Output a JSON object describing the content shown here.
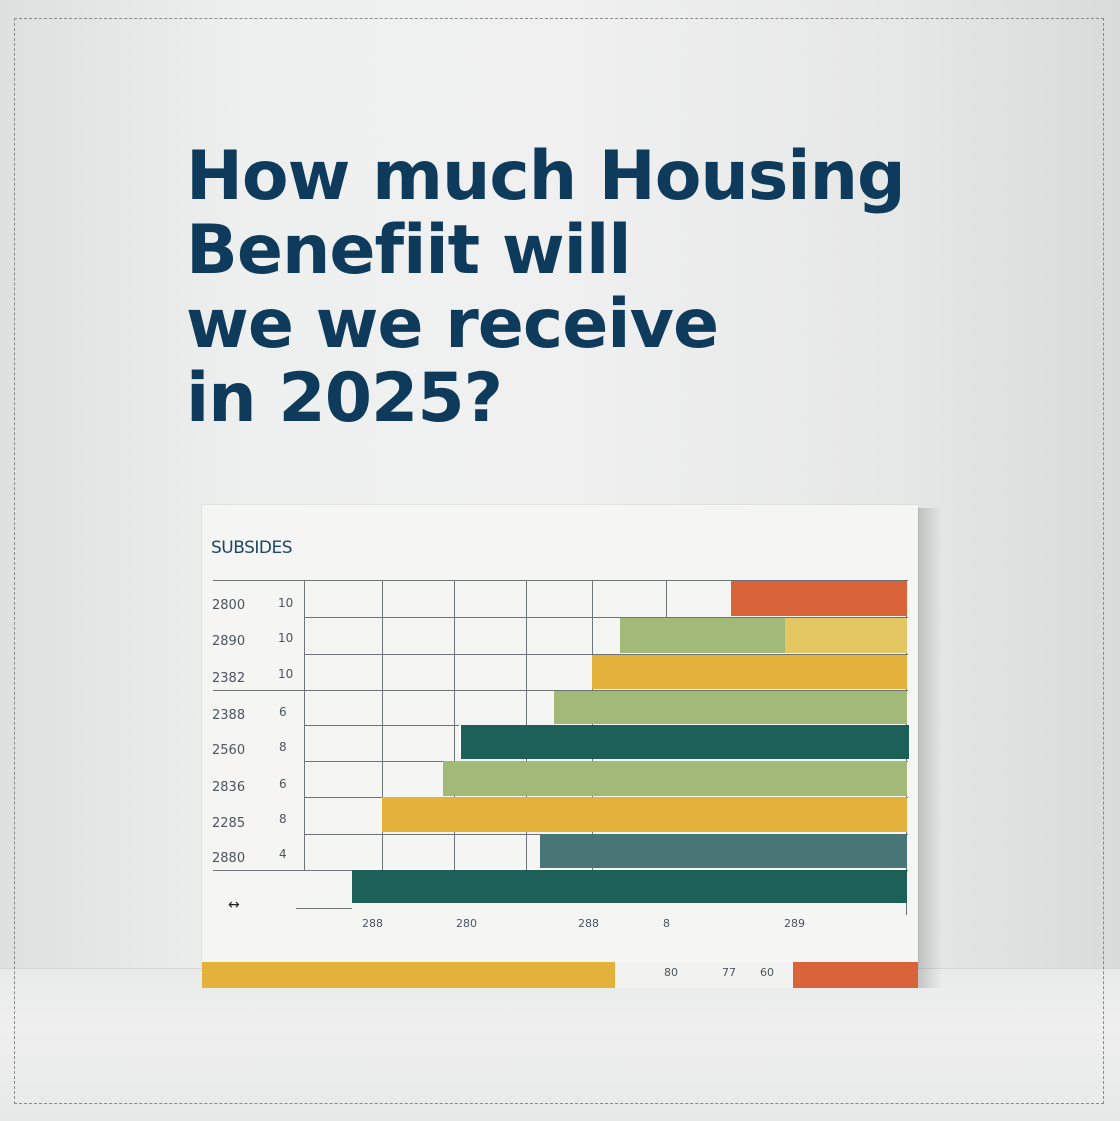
{
  "headline": {
    "line1": "How much Housing",
    "line2": "Benefiit will",
    "line3": "we we receive",
    "line4": "in 2025?"
  },
  "board": {
    "title": "SUBSIDES",
    "arrow_glyph": "↔",
    "rows": [
      {
        "label": "2800",
        "num": "10"
      },
      {
        "label": "2890",
        "num": "10"
      },
      {
        "label": "2382",
        "num": "10"
      },
      {
        "label": "2388",
        "num": "6"
      },
      {
        "label": "2560",
        "num": "8"
      },
      {
        "label": "2836",
        "num": "6"
      },
      {
        "label": "2285",
        "num": "8"
      },
      {
        "label": "2880",
        "num": "4"
      }
    ],
    "x_labels": [
      "288",
      "280",
      "288",
      "8",
      "289"
    ],
    "strip_numbers": [
      "80",
      "77",
      "60"
    ]
  },
  "colors": {
    "orange": "#d9643a",
    "light_green": "#a3b977",
    "yellow": "#e2b23b",
    "pale_yellow": "#e3c763",
    "teal_dark": "#1d6058",
    "teal_mid": "#487575",
    "headline": "#0e3b5c"
  }
}
